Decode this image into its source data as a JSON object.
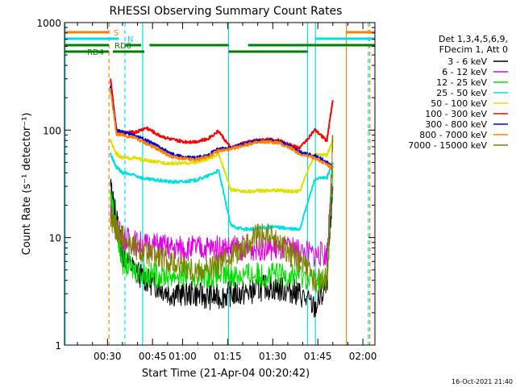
{
  "chart_data": {
    "type": "line",
    "title": "RHESSI Observing Summary Count Rates",
    "xlabel": "Start Time (21-Apr-04 00:20:42)",
    "ylabel": "Count Rate (s⁻¹ detector⁻¹)",
    "yscale": "log",
    "ylim": [
      1,
      1000
    ],
    "xlim_minutes": [
      20.7,
      124
    ],
    "y_ticks": [
      {
        "v": 1,
        "label": "1"
      },
      {
        "v": 10,
        "label": "10"
      },
      {
        "v": 100,
        "label": "100"
      },
      {
        "v": 1000,
        "label": "1000"
      }
    ],
    "x_ticks": [
      {
        "v": 35,
        "label": "00:30"
      },
      {
        "v": 50,
        "label": "00:45"
      },
      {
        "v": 60,
        "label": "01:00"
      },
      {
        "v": 75,
        "label": "01:15"
      },
      {
        "v": 90,
        "label": "01:30"
      },
      {
        "v": 105,
        "label": "01:45"
      },
      {
        "v": 120,
        "label": "02:00"
      }
    ],
    "legend_title": [
      "Det 1,3,4,5,6,9,",
      "FDecim 1, Att 0"
    ],
    "legend_placement": "right",
    "footer_date": "16-Oct-2021 21:40",
    "series": [
      {
        "name": "3 - 6 keV",
        "color": "#000000",
        "x": [
          36,
          38,
          40,
          44,
          48,
          52,
          56,
          60,
          64,
          68,
          72,
          76,
          80,
          84,
          88,
          92,
          96,
          99,
          104,
          108,
          110
        ],
        "y": [
          30,
          15,
          7,
          5,
          4,
          3.5,
          3,
          3,
          3,
          2.8,
          2.8,
          3,
          3,
          3.2,
          3.5,
          3.3,
          3.2,
          3,
          2.2,
          3.5,
          30
        ]
      },
      {
        "name": "6 - 12 keV",
        "color": "#e000e0",
        "x": [
          36,
          38,
          40,
          44,
          48,
          52,
          56,
          60,
          64,
          68,
          72,
          76,
          80,
          84,
          88,
          92,
          96,
          99,
          104,
          108,
          110
        ],
        "y": [
          20,
          12,
          10,
          9,
          8.5,
          8.5,
          8,
          8,
          8,
          8,
          8,
          8,
          8,
          8,
          8,
          7.8,
          7.8,
          7.5,
          7,
          7,
          40
        ]
      },
      {
        "name": "12 - 25 keV",
        "color": "#00e000",
        "x": [
          36,
          38,
          40,
          44,
          48,
          52,
          56,
          60,
          64,
          68,
          72,
          76,
          80,
          84,
          88,
          92,
          96,
          99,
          104,
          108,
          110
        ],
        "y": [
          25,
          12,
          6,
          5,
          4.5,
          4.5,
          4.5,
          4.5,
          4.5,
          4.5,
          4.5,
          4.5,
          4.5,
          4.5,
          4.5,
          4.5,
          4.5,
          4.5,
          4,
          3.8,
          40
        ]
      },
      {
        "name": "25 - 50 keV",
        "color": "#00e0e0",
        "x": [
          36,
          38,
          40,
          44,
          48,
          52,
          56,
          60,
          64,
          68,
          72,
          76,
          80,
          84,
          88,
          92,
          96,
          99,
          104,
          108,
          110
        ],
        "y": [
          60,
          45,
          40,
          38,
          35,
          34,
          33,
          33,
          34,
          37,
          42,
          13,
          12,
          12,
          12.5,
          12.5,
          12,
          12,
          35,
          36,
          50
        ]
      },
      {
        "name": "50 - 100 keV",
        "color": "#e0e000",
        "x": [
          36,
          38,
          40,
          44,
          48,
          52,
          56,
          60,
          64,
          68,
          72,
          76,
          80,
          84,
          88,
          92,
          96,
          99,
          104,
          108,
          110
        ],
        "y": [
          80,
          60,
          55,
          55,
          52,
          50,
          49,
          49,
          50,
          53,
          60,
          28,
          27,
          27,
          27.5,
          27.5,
          27,
          27,
          60,
          58,
          80
        ]
      },
      {
        "name": "100 - 300 keV",
        "color": "#ff0000",
        "x": [
          36,
          38,
          40,
          44,
          48,
          52,
          56,
          60,
          64,
          68,
          72,
          76,
          80,
          84,
          88,
          92,
          96,
          99,
          104,
          108,
          110
        ],
        "y": [
          300,
          100,
          95,
          95,
          105,
          90,
          82,
          78,
          78,
          82,
          98,
          68,
          75,
          80,
          82,
          80,
          72,
          68,
          100,
          80,
          190
        ]
      },
      {
        "name": "300 - 800 keV",
        "color": "#0000e0",
        "x": [
          36,
          38,
          40,
          44,
          48,
          52,
          56,
          60,
          64,
          68,
          72,
          76,
          80,
          84,
          88,
          92,
          96,
          99,
          104,
          108,
          110
        ],
        "y": [
          250,
          98,
          95,
          90,
          80,
          70,
          60,
          56,
          55,
          58,
          67,
          68,
          74,
          78,
          80,
          78,
          70,
          62,
          58,
          50,
          45
        ]
      },
      {
        "name": "800 - 7000 keV",
        "color": "#ff8000",
        "x": [
          36,
          38,
          40,
          44,
          48,
          52,
          56,
          60,
          64,
          68,
          72,
          76,
          80,
          84,
          88,
          92,
          96,
          99,
          104,
          108,
          110
        ],
        "y": [
          240,
          92,
          90,
          85,
          75,
          66,
          57,
          54,
          53,
          56,
          64,
          66,
          72,
          76,
          78,
          76,
          68,
          60,
          55,
          48,
          44
        ]
      },
      {
        "name": "7000 - 15000 keV",
        "color": "#808000",
        "x": [
          36,
          38,
          40,
          44,
          48,
          52,
          56,
          60,
          64,
          68,
          72,
          76,
          80,
          84,
          88,
          92,
          96,
          99,
          104,
          108,
          110
        ],
        "y": [
          15,
          12,
          10,
          8,
          7,
          6.5,
          6,
          5.5,
          5,
          5,
          5.5,
          7,
          8,
          10,
          10.5,
          9,
          7,
          6,
          4,
          4,
          90
        ]
      }
    ],
    "vertical_lines": [
      {
        "x": 20.9,
        "color": "#00e0e0",
        "style": "solid"
      },
      {
        "x": 35.5,
        "color": "#ff8000",
        "style": "dashed"
      },
      {
        "x": 40.8,
        "color": "#00e0e0",
        "style": "dashed"
      },
      {
        "x": 46.7,
        "color": "#00e0e0",
        "style": "solid"
      },
      {
        "x": 75.3,
        "color": "#00e0e0",
        "style": "solid"
      },
      {
        "x": 101.6,
        "color": "#00e0e0",
        "style": "solid"
      },
      {
        "x": 104.2,
        "color": "#00e0e0",
        "style": "solid"
      },
      {
        "x": 114.5,
        "color": "#ff8000",
        "style": "solid"
      },
      {
        "x": 121.8,
        "color": "#00e0e0",
        "style": "dashed"
      },
      {
        "x": 122.3,
        "color": "#ff8000",
        "style": "dashed"
      }
    ],
    "flag_bars": [
      {
        "label": "S",
        "color": "#ff8000",
        "y_level": 1,
        "segments": [
          [
            20.9,
            35.5
          ],
          [
            114.5,
            124
          ]
        ]
      },
      {
        "label": "N",
        "color": "#00e0e0",
        "y_level": 2,
        "segments": [
          [
            20.9,
            38.8
          ],
          [
            104.2,
            124
          ]
        ]
      },
      {
        "label": "RD0",
        "color": "#008000",
        "y_level": 3,
        "segments": [
          [
            20.9,
            35.5
          ],
          [
            40.8,
            46.2
          ],
          [
            49,
            75.3
          ],
          [
            81.8,
            124
          ]
        ]
      },
      {
        "label": "RD4",
        "color": "#008000",
        "y_level": 4,
        "segments": [
          [
            20.9,
            35.5
          ],
          [
            36.8,
            47.3
          ],
          [
            75.3,
            101.6
          ]
        ]
      }
    ]
  }
}
